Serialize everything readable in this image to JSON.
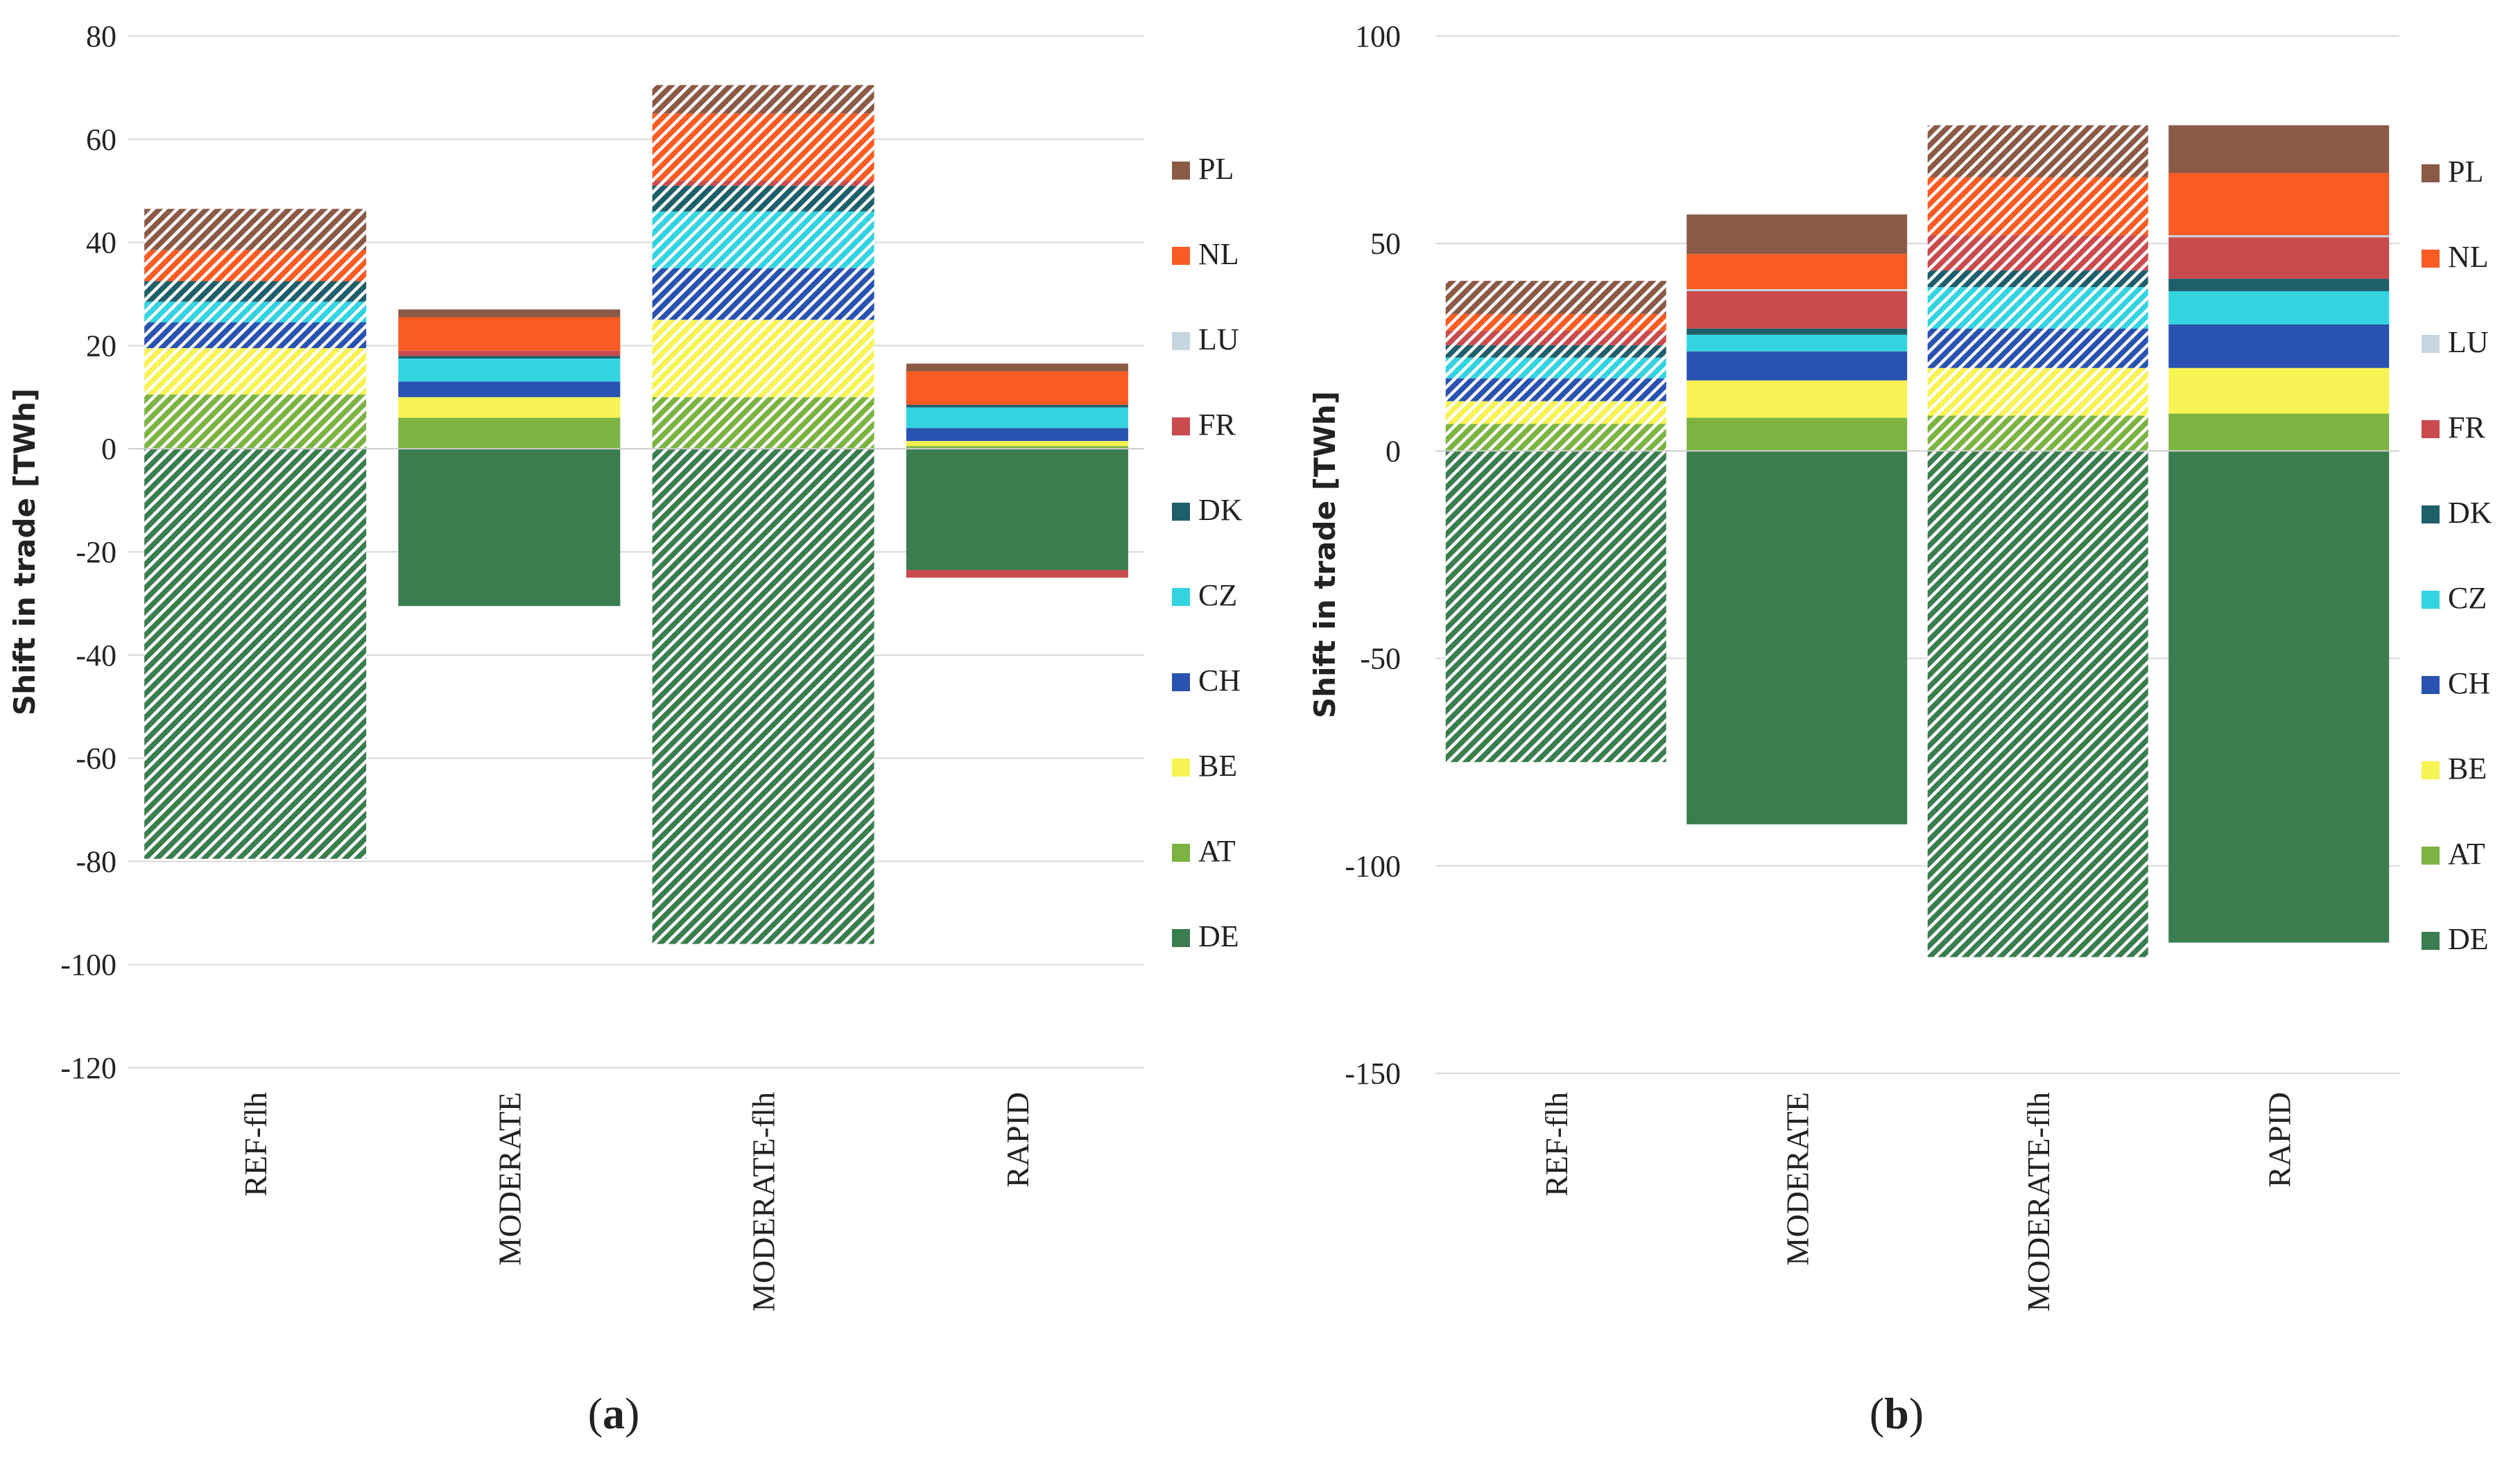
{
  "chart_data": [
    {
      "type": "bar",
      "stacked": true,
      "caption_letter": "a",
      "ylabel": "Shift in trade [TWh]",
      "ylim": [
        -120,
        80
      ],
      "yticks": [
        80,
        60,
        40,
        20,
        0,
        -20,
        -40,
        -60,
        -80,
        -100,
        -120
      ],
      "categories": [
        "REF-flh",
        "MODERATE",
        "MODERATE-flh",
        "RAPID"
      ],
      "hatched_categories": [
        "REF-flh",
        "MODERATE-flh"
      ],
      "legend_position": "right",
      "series": [
        {
          "name": "DE",
          "color": "#3a7d4f",
          "values": [
            -79.5,
            -30.5,
            -96,
            -23.5
          ]
        },
        {
          "name": "AT",
          "color": "#7cb342",
          "values": [
            10.5,
            6,
            10,
            0.5
          ]
        },
        {
          "name": "BE",
          "color": "#f7f354",
          "values": [
            9,
            4,
            15,
            1
          ]
        },
        {
          "name": "CH",
          "color": "#2a52b0",
          "values": [
            5,
            3,
            10,
            2.5
          ]
        },
        {
          "name": "CZ",
          "color": "#33d4e0",
          "values": [
            4,
            4.5,
            11,
            4
          ]
        },
        {
          "name": "DK",
          "color": "#1f5f6b",
          "values": [
            4,
            0.5,
            5,
            0.5
          ]
        },
        {
          "name": "FR",
          "color": "#c94b4e",
          "values": [
            0,
            1,
            1,
            -1.5
          ]
        },
        {
          "name": "LU",
          "color": "#c5d6e0",
          "values": [
            0,
            0,
            0,
            0
          ]
        },
        {
          "name": "NL",
          "color": "#f95b24",
          "values": [
            6,
            6.5,
            13,
            6.5
          ]
        },
        {
          "name": "PL",
          "color": "#8b5a47",
          "values": [
            8,
            1.5,
            5.5,
            1.5
          ]
        }
      ]
    },
    {
      "type": "bar",
      "stacked": true,
      "caption_letter": "b",
      "ylabel": "Shift in trade [TWh]",
      "ylim": [
        -150,
        100
      ],
      "yticks": [
        100,
        50,
        0,
        -50,
        -100,
        -150
      ],
      "categories": [
        "REF-flh",
        "MODERATE",
        "MODERATE-flh",
        "RAPID"
      ],
      "hatched_categories": [
        "REF-flh",
        "MODERATE-flh"
      ],
      "legend_position": "right",
      "series": [
        {
          "name": "DE",
          "color": "#3a7d4f",
          "values": [
            -75,
            -90,
            -122,
            -118.5
          ]
        },
        {
          "name": "AT",
          "color": "#7cb342",
          "values": [
            6.5,
            8,
            8.5,
            9
          ]
        },
        {
          "name": "BE",
          "color": "#f7f354",
          "values": [
            5.5,
            9,
            11.5,
            11
          ]
        },
        {
          "name": "CH",
          "color": "#2a52b0",
          "values": [
            5.5,
            7,
            9.5,
            10.5
          ]
        },
        {
          "name": "CZ",
          "color": "#33d4e0",
          "values": [
            5,
            4,
            10,
            8
          ]
        },
        {
          "name": "DK",
          "color": "#1f5f6b",
          "values": [
            3,
            1.5,
            4,
            3
          ]
        },
        {
          "name": "FR",
          "color": "#c94b4e",
          "values": [
            3.5,
            9,
            8.5,
            10
          ]
        },
        {
          "name": "LU",
          "color": "#c5d6e0",
          "values": [
            0,
            0.5,
            0,
            0.5
          ]
        },
        {
          "name": "NL",
          "color": "#f95b24",
          "values": [
            4,
            8.5,
            14,
            15
          ]
        },
        {
          "name": "PL",
          "color": "#8b5a47",
          "values": [
            8,
            9.5,
            12.5,
            11.5
          ]
        }
      ]
    }
  ]
}
